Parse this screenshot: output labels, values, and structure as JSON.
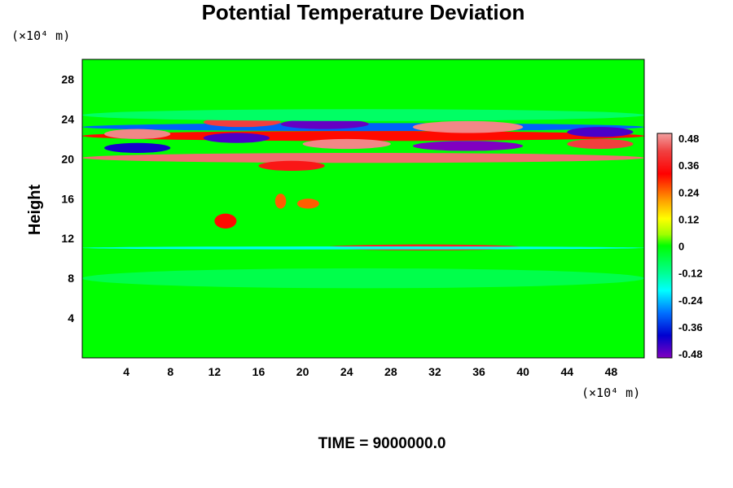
{
  "chart_data": {
    "type": "heatmap",
    "title": "Potential Temperature Deviation",
    "ylabel": "Height",
    "y_unit_label": "(×10⁴ m)",
    "x_unit_label": "(×10⁴ m)",
    "x_range": [
      0,
      51
    ],
    "y_range": [
      0,
      30
    ],
    "x_ticks": [
      4,
      8,
      12,
      16,
      20,
      24,
      28,
      32,
      36,
      40,
      44,
      48
    ],
    "y_ticks": [
      4,
      8,
      12,
      16,
      20,
      24,
      28
    ],
    "colorbar": {
      "range": [
        -0.48,
        0.48
      ],
      "ticks": [
        "0.48",
        "0.36",
        "0.24",
        "0.12",
        "0",
        "-0.12",
        "-0.24",
        "-0.36",
        "-0.48"
      ]
    },
    "time_label": "TIME = 9000000.0",
    "features": [
      {
        "x": [
          0,
          51
        ],
        "y": [
          19.6,
          20.6
        ],
        "value": 0.44
      },
      {
        "x": [
          0,
          51
        ],
        "y": [
          21.8,
          22.8
        ],
        "value": 0.3
      },
      {
        "x": [
          0,
          51
        ],
        "y": [
          22.8,
          23.6
        ],
        "value": -0.3
      },
      {
        "x": [
          2,
          8
        ],
        "y": [
          22.0,
          23.0
        ],
        "value": 0.46
      },
      {
        "x": [
          2,
          8
        ],
        "y": [
          20.6,
          21.6
        ],
        "value": -0.4
      },
      {
        "x": [
          11,
          18
        ],
        "y": [
          23.2,
          24.2
        ],
        "value": 0.4
      },
      {
        "x": [
          11,
          17
        ],
        "y": [
          21.6,
          22.6
        ],
        "value": -0.44
      },
      {
        "x": [
          18,
          26
        ],
        "y": [
          23.0,
          24.0
        ],
        "value": -0.46
      },
      {
        "x": [
          20,
          28
        ],
        "y": [
          21.0,
          22.0
        ],
        "value": 0.46
      },
      {
        "x": [
          30,
          40
        ],
        "y": [
          22.6,
          23.8
        ],
        "value": 0.46
      },
      {
        "x": [
          30,
          40
        ],
        "y": [
          20.8,
          21.8
        ],
        "value": -0.48
      },
      {
        "x": [
          44,
          50
        ],
        "y": [
          22.2,
          23.2
        ],
        "value": -0.44
      },
      {
        "x": [
          44,
          50
        ],
        "y": [
          21.0,
          22.0
        ],
        "value": 0.4
      },
      {
        "x": [
          16,
          22
        ],
        "y": [
          18.8,
          19.8
        ],
        "value": 0.34
      },
      {
        "x": [
          17.5,
          18.5
        ],
        "y": [
          15.0,
          16.5
        ],
        "value": 0.24
      },
      {
        "x": [
          19.5,
          21.5
        ],
        "y": [
          15.0,
          16.0
        ],
        "value": 0.24
      },
      {
        "x": [
          12,
          14
        ],
        "y": [
          13.0,
          14.5
        ],
        "value": 0.3
      },
      {
        "x": [
          22,
          40
        ],
        "y": [
          10.8,
          11.4
        ],
        "value": 0.36
      },
      {
        "x": [
          0,
          51
        ],
        "y": [
          10.9,
          11.2
        ],
        "value": -0.18
      },
      {
        "x": [
          0,
          51
        ],
        "y": [
          7.0,
          9.0
        ],
        "value": -0.06
      },
      {
        "x": [
          0,
          51
        ],
        "y": [
          23.8,
          25.0
        ],
        "value": -0.08
      }
    ]
  }
}
